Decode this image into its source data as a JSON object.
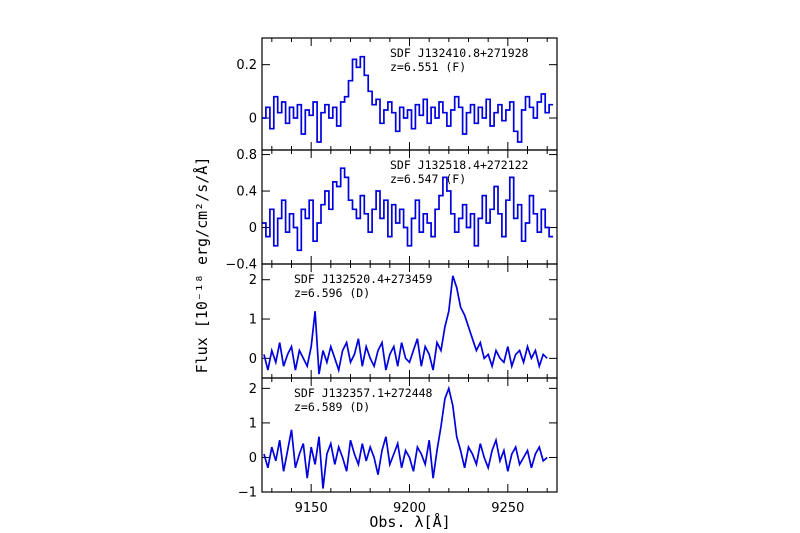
{
  "chart_data": {
    "type": "line",
    "xlabel": "Obs. λ[Å]",
    "ylabel": "Flux [10⁻¹⁸ erg/cm²/s/Å]",
    "xlim": [
      9125,
      9275
    ],
    "x_ticks": [
      9150,
      9200,
      9250
    ],
    "line_color": "#0000dd",
    "panels": [
      {
        "name": "SDF J132410.8+271928",
        "annotation_line1": "SDF J132410.8+271928",
        "annotation_line2": "z=6.551 (F)",
        "style": "step",
        "ylim": [
          -0.12,
          0.3
        ],
        "y_ticks": [
          0,
          0.2
        ],
        "y_tick_labels": [
          "0",
          "0.2"
        ],
        "x": [
          9126,
          9128,
          9130,
          9132,
          9134,
          9136,
          9138,
          9140,
          9142,
          9144,
          9146,
          9148,
          9150,
          9152,
          9154,
          9156,
          9158,
          9160,
          9162,
          9164,
          9166,
          9168,
          9170,
          9172,
          9174,
          9176,
          9178,
          9180,
          9182,
          9184,
          9186,
          9188,
          9190,
          9192,
          9194,
          9196,
          9198,
          9200,
          9202,
          9204,
          9206,
          9208,
          9210,
          9212,
          9214,
          9216,
          9218,
          9220,
          9222,
          9224,
          9226,
          9228,
          9230,
          9232,
          9234,
          9236,
          9238,
          9240,
          9242,
          9244,
          9246,
          9248,
          9250,
          9252,
          9254,
          9256,
          9258,
          9260,
          9262,
          9264,
          9266,
          9268,
          9270,
          9272
        ],
        "y": [
          0.0,
          0.04,
          -0.04,
          0.08,
          0.02,
          0.06,
          -0.02,
          0.04,
          0.0,
          0.05,
          -0.06,
          0.03,
          0.01,
          0.06,
          -0.09,
          0.02,
          0.05,
          0.0,
          0.04,
          -0.03,
          0.06,
          0.08,
          0.14,
          0.22,
          0.19,
          0.23,
          0.16,
          0.1,
          0.05,
          0.07,
          -0.02,
          0.03,
          0.06,
          0.02,
          -0.05,
          0.04,
          0.0,
          0.03,
          -0.04,
          0.05,
          0.01,
          0.07,
          -0.02,
          0.04,
          0.0,
          0.06,
          0.02,
          -0.03,
          0.03,
          0.08,
          0.04,
          -0.06,
          0.02,
          0.05,
          -0.02,
          0.04,
          0.0,
          0.07,
          -0.03,
          0.02,
          0.05,
          -0.01,
          0.03,
          0.06,
          -0.05,
          -0.09,
          0.03,
          0.08,
          0.04,
          0.0,
          0.06,
          0.09,
          0.02,
          0.05
        ]
      },
      {
        "name": "SDF J132518.4+272122",
        "annotation_line1": "SDF J132518.4+272122",
        "annotation_line2": "z=6.547 (F)",
        "style": "step",
        "ylim": [
          -0.4,
          0.85
        ],
        "y_ticks": [
          -0.4,
          0,
          0.4,
          0.8
        ],
        "y_tick_labels": [
          "−0.4",
          "0",
          "0.4",
          "0.8"
        ],
        "x": [
          9126,
          9128,
          9130,
          9132,
          9134,
          9136,
          9138,
          9140,
          9142,
          9144,
          9146,
          9148,
          9150,
          9152,
          9154,
          9156,
          9158,
          9160,
          9162,
          9164,
          9166,
          9168,
          9170,
          9172,
          9174,
          9176,
          9178,
          9180,
          9182,
          9184,
          9186,
          9188,
          9190,
          9192,
          9194,
          9196,
          9198,
          9200,
          9202,
          9204,
          9206,
          9208,
          9210,
          9212,
          9214,
          9216,
          9218,
          9220,
          9222,
          9224,
          9226,
          9228,
          9230,
          9232,
          9234,
          9236,
          9238,
          9240,
          9242,
          9244,
          9246,
          9248,
          9250,
          9252,
          9254,
          9256,
          9258,
          9260,
          9262,
          9264,
          9266,
          9268,
          9270,
          9272
        ],
        "y": [
          0.05,
          -0.1,
          0.2,
          -0.2,
          0.1,
          0.3,
          -0.05,
          0.15,
          0.0,
          -0.25,
          0.2,
          0.1,
          0.3,
          -0.15,
          0.05,
          0.25,
          0.4,
          0.2,
          0.5,
          0.45,
          0.65,
          0.55,
          0.3,
          0.2,
          0.1,
          0.35,
          0.15,
          -0.05,
          0.2,
          0.4,
          0.1,
          0.3,
          -0.1,
          0.25,
          0.05,
          0.2,
          0.0,
          -0.2,
          0.1,
          0.3,
          -0.05,
          0.15,
          0.05,
          -0.1,
          0.2,
          0.35,
          0.55,
          0.4,
          0.15,
          -0.05,
          0.1,
          0.25,
          0.0,
          0.15,
          -0.2,
          0.1,
          0.35,
          0.05,
          0.2,
          0.45,
          0.15,
          -0.1,
          0.3,
          0.55,
          0.1,
          0.25,
          -0.15,
          0.05,
          0.35,
          0.15,
          -0.05,
          0.2,
          0.0,
          -0.1
        ]
      },
      {
        "name": "SDF J132520.4+273459",
        "annotation_line1": "SDF J132520.4+273459",
        "annotation_line2": "z=6.596 (D)",
        "style": "line",
        "ylim": [
          -0.5,
          2.4
        ],
        "y_ticks": [
          0,
          1,
          2
        ],
        "y_tick_labels": [
          "0",
          "1",
          "2"
        ],
        "x": [
          9126,
          9128,
          9130,
          9132,
          9134,
          9136,
          9138,
          9140,
          9142,
          9144,
          9146,
          9148,
          9150,
          9152,
          9154,
          9156,
          9158,
          9160,
          9162,
          9164,
          9166,
          9168,
          9170,
          9172,
          9174,
          9176,
          9178,
          9180,
          9182,
          9184,
          9186,
          9188,
          9190,
          9192,
          9194,
          9196,
          9198,
          9200,
          9202,
          9204,
          9206,
          9208,
          9210,
          9212,
          9214,
          9216,
          9218,
          9220,
          9222,
          9224,
          9226,
          9228,
          9230,
          9232,
          9234,
          9236,
          9238,
          9240,
          9242,
          9244,
          9246,
          9248,
          9250,
          9252,
          9254,
          9256,
          9258,
          9260,
          9262,
          9264,
          9266,
          9268,
          9270
        ],
        "y": [
          0.1,
          -0.3,
          0.2,
          -0.1,
          0.4,
          -0.2,
          0.1,
          0.3,
          -0.3,
          0.2,
          0.0,
          -0.2,
          0.3,
          1.2,
          -0.4,
          0.2,
          -0.1,
          0.3,
          0.0,
          -0.3,
          0.2,
          0.4,
          -0.1,
          0.1,
          0.5,
          -0.2,
          0.3,
          0.0,
          -0.2,
          0.2,
          0.4,
          -0.3,
          0.1,
          0.3,
          -0.2,
          0.4,
          0.0,
          -0.1,
          0.2,
          0.5,
          -0.2,
          0.3,
          0.1,
          -0.3,
          0.4,
          0.2,
          0.8,
          1.2,
          2.1,
          1.8,
          1.3,
          1.1,
          0.8,
          0.5,
          0.2,
          0.4,
          0.0,
          0.1,
          -0.2,
          0.2,
          0.0,
          -0.1,
          0.3,
          -0.2,
          0.1,
          0.2,
          -0.1,
          0.3,
          0.0,
          0.2,
          -0.2,
          0.1,
          0.0
        ]
      },
      {
        "name": "SDF J132357.1+272448",
        "annotation_line1": "SDF J132357.1+272448",
        "annotation_line2": "z=6.589 (D)",
        "style": "line",
        "ylim": [
          -1.0,
          2.3
        ],
        "y_ticks": [
          -1,
          0,
          1,
          2
        ],
        "y_tick_labels": [
          "−1",
          "0",
          "1",
          "2"
        ],
        "x": [
          9126,
          9128,
          9130,
          9132,
          9134,
          9136,
          9138,
          9140,
          9142,
          9144,
          9146,
          9148,
          9150,
          9152,
          9154,
          9156,
          9158,
          9160,
          9162,
          9164,
          9166,
          9168,
          9170,
          9172,
          9174,
          9176,
          9178,
          9180,
          9182,
          9184,
          9186,
          9188,
          9190,
          9192,
          9194,
          9196,
          9198,
          9200,
          9202,
          9204,
          9206,
          9208,
          9210,
          9212,
          9214,
          9216,
          9218,
          9220,
          9222,
          9224,
          9226,
          9228,
          9230,
          9232,
          9234,
          9236,
          9238,
          9240,
          9242,
          9244,
          9246,
          9248,
          9250,
          9252,
          9254,
          9256,
          9258,
          9260,
          9262,
          9264,
          9266,
          9268,
          9270
        ],
        "y": [
          0.1,
          -0.3,
          0.3,
          -0.1,
          0.5,
          -0.4,
          0.2,
          0.8,
          -0.3,
          0.1,
          0.4,
          -0.6,
          0.3,
          -0.2,
          0.6,
          -0.9,
          0.1,
          0.4,
          -0.2,
          0.3,
          0.0,
          -0.4,
          0.5,
          0.1,
          -0.2,
          0.4,
          -0.1,
          0.3,
          0.0,
          -0.5,
          0.2,
          0.6,
          -0.2,
          0.1,
          0.4,
          -0.3,
          0.2,
          0.0,
          -0.4,
          0.3,
          0.1,
          -0.2,
          0.5,
          -0.6,
          0.2,
          0.9,
          1.7,
          2.0,
          1.5,
          0.6,
          0.2,
          -0.3,
          0.3,
          0.1,
          -0.2,
          0.4,
          0.0,
          -0.3,
          0.2,
          0.5,
          -0.1,
          0.2,
          -0.4,
          0.1,
          0.3,
          -0.2,
          0.0,
          0.2,
          -0.3,
          0.1,
          0.3,
          -0.1,
          0.0
        ]
      }
    ]
  }
}
